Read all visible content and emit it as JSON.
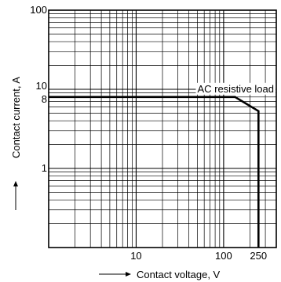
{
  "chart_data": {
    "type": "line",
    "title": "",
    "xlabel": "Contact voltage, V",
    "ylabel": "Contact current, A",
    "x_scale": "log",
    "y_scale": "log",
    "xlim": [
      1,
      400
    ],
    "ylim": [
      0.1,
      100
    ],
    "grid": true,
    "x_ticks": [
      {
        "value": 10,
        "label": "10"
      },
      {
        "value": 100,
        "label": "100"
      },
      {
        "value": 250,
        "label": "250"
      }
    ],
    "y_ticks": [
      {
        "value": 1,
        "label": "1"
      },
      {
        "value": 8,
        "label": "8"
      },
      {
        "value": 10,
        "label": "10"
      },
      {
        "value": 100,
        "label": "100"
      }
    ],
    "series": [
      {
        "name": "",
        "color": "#000000",
        "points": [
          {
            "x": 1,
            "y": 8
          },
          {
            "x": 135,
            "y": 8
          },
          {
            "x": 250,
            "y": 5.3
          },
          {
            "x": 250,
            "y": 0.1
          }
        ]
      }
    ],
    "annotations": [
      {
        "text": "AC resistive load",
        "x": 400,
        "y": 8
      }
    ]
  }
}
